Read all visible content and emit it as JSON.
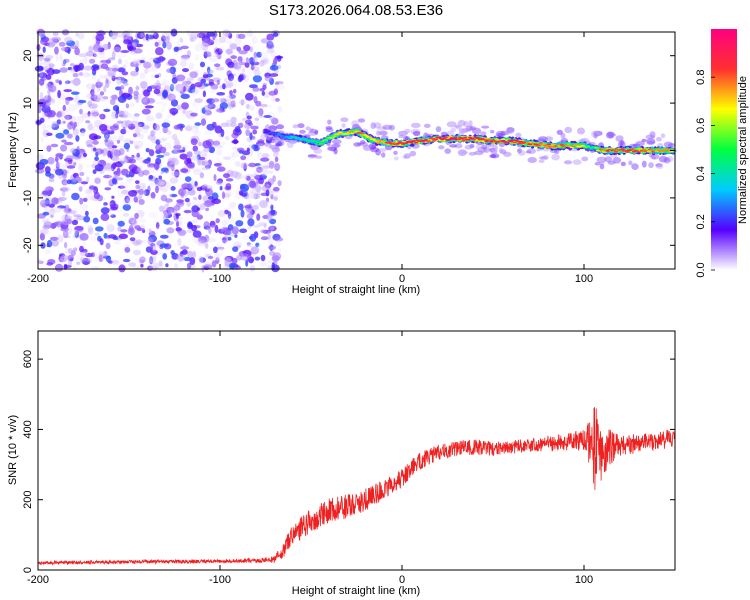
{
  "chart_data": [
    {
      "type": "heatmap",
      "title": "S173.2026.064.08.53.E36",
      "xlabel": "Height of straight line (km)",
      "ylabel": "Frequency (Hz)",
      "xlim": [
        -200,
        150
      ],
      "ylim": [
        -25,
        25
      ],
      "xticks": [
        "-200",
        "-100",
        "0",
        "100"
      ],
      "yticks": [
        "20",
        "10",
        "0",
        "-10",
        "-20"
      ],
      "ridge": {
        "x": [
          -75,
          -65,
          -55,
          -45,
          -35,
          -25,
          -15,
          -5,
          0,
          10,
          20,
          30,
          40,
          50,
          60,
          70,
          80,
          90,
          100,
          105,
          110,
          120,
          130,
          140,
          150
        ],
        "frequency": [
          4,
          3,
          2.5,
          1.5,
          3.5,
          4,
          2,
          1.5,
          1.5,
          2,
          2.5,
          2.5,
          2.5,
          2,
          2,
          1.5,
          1,
          1,
          1,
          0.5,
          0,
          0,
          0,
          0,
          0
        ],
        "amplitude": [
          0.2,
          0.3,
          0.4,
          0.5,
          0.7,
          0.8,
          0.7,
          0.85,
          0.95,
          0.9,
          0.95,
          1.0,
          0.95,
          0.9,
          0.95,
          0.85,
          0.85,
          0.8,
          0.7,
          0.4,
          0.85,
          0.9,
          0.85,
          0.8,
          0.75
        ]
      },
      "noise_region": {
        "x_from": -200,
        "x_to": -75,
        "amplitude_max": 0.25
      }
    },
    {
      "type": "line",
      "xlabel": "Height of straight line (km)",
      "ylabel": "SNR (10 * v/v)",
      "xlim": [
        -200,
        150
      ],
      "ylim": [
        0,
        680
      ],
      "xticks": [
        "-200",
        "-100",
        "0",
        "100"
      ],
      "yticks": [
        "0",
        "200",
        "400",
        "600"
      ],
      "color": "#ee2020",
      "series": [
        {
          "name": "SNR",
          "x": [
            -200,
            -180,
            -160,
            -140,
            -120,
            -100,
            -80,
            -70,
            -65,
            -60,
            -50,
            -40,
            -30,
            -20,
            -10,
            0,
            5,
            10,
            20,
            30,
            40,
            50,
            60,
            70,
            80,
            90,
            100,
            104,
            106,
            108,
            110,
            120,
            130,
            140,
            150
          ],
          "values": [
            20,
            22,
            22,
            24,
            24,
            25,
            27,
            30,
            60,
            100,
            140,
            170,
            180,
            200,
            230,
            260,
            290,
            310,
            335,
            345,
            350,
            345,
            350,
            355,
            360,
            365,
            370,
            360,
            350,
            330,
            340,
            355,
            360,
            365,
            380
          ],
          "noise_amplitude": [
            10,
            10,
            10,
            10,
            10,
            10,
            12,
            20,
            50,
            60,
            70,
            70,
            70,
            65,
            60,
            55,
            50,
            50,
            45,
            45,
            45,
            40,
            40,
            40,
            45,
            50,
            60,
            150,
            280,
            250,
            140,
            60,
            55,
            55,
            55
          ]
        }
      ]
    }
  ],
  "colorbar": {
    "label": "Normalized spectral amplitude",
    "ticks": [
      "0.0",
      "0.2",
      "0.4",
      "0.6",
      "0.8"
    ],
    "tick_values": [
      0,
      0.2,
      0.4,
      0.6,
      0.8
    ],
    "range": [
      0,
      1
    ],
    "stops": [
      "#ffffff",
      "#5500ff",
      "#00ccff",
      "#00ff40",
      "#ffff00",
      "#ff3030",
      "#ff0080"
    ]
  }
}
